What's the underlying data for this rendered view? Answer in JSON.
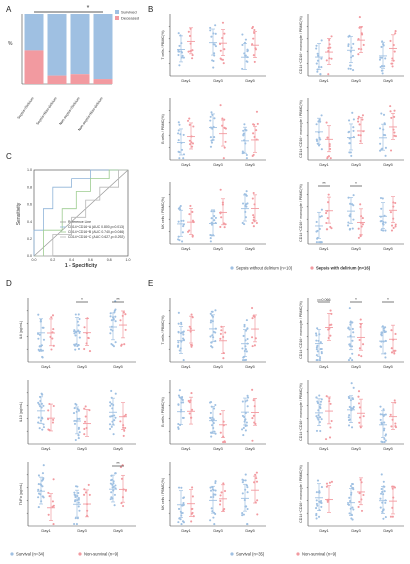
{
  "colors": {
    "blue": "#9fc0e2",
    "red": "#f29aa0",
    "axis": "#444444",
    "roc_ref": "#9a9a9a",
    "roc_a": "#8fb4d8",
    "roc_b": "#9ccc8f",
    "roc_c": "#b7b7b7",
    "sig": "#222222"
  },
  "panel_letters": [
    "A",
    "B",
    "C",
    "D",
    "E"
  ],
  "panelA": {
    "ylabel": "%",
    "legend": [
      "Survived",
      "Deceased"
    ],
    "sig": "*",
    "categories": [
      "Sepsis+Delirium",
      "Sepsis+Non-delirium",
      "Non-sepsis+Delirium",
      "Non-sepsis+Non-delirium"
    ],
    "deceased_pct": [
      48,
      12,
      14,
      7
    ]
  },
  "panelB": {
    "group_labels": [
      "Day1",
      "Day3",
      "Day5"
    ],
    "legend": [
      "Sepsis without delirium (n=10)",
      "Sepsis with delirium (n=16)"
    ],
    "left": [
      "T cells / PBMC(%)",
      "B cells / PBMC(%)",
      "NK cells / PBMC(%)"
    ],
    "right": [
      "CD14⁺CD16⁺ monocyte / PBMC(%)",
      "CD14⁺CD16⁺ monocyte / PBMC(%)",
      "CD14⁺CD16⁺ monocyte / PBMC(%)"
    ],
    "sig_right3": [
      "**",
      "*"
    ]
  },
  "panelC": {
    "xlabel": "1 - Specificity",
    "ylabel": "Sensitivity",
    "ticks": [
      "0.0",
      "0.2",
      "0.4",
      "0.6",
      "0.8",
      "1.0"
    ],
    "legend": [
      "Reference Line",
      "CD14⁺CD16⁺A (AUC 0.800,p=0.013)",
      "CD14⁺CD16⁺B (AUC 0.740,p=0.046)",
      "CD14⁺CD16⁺C (AUC 0.627,p=0.292)"
    ]
  },
  "panelD": {
    "ylabels": [
      "IL6 (pg/mL)",
      "IL10 (pg/mL)",
      "TNFα (pg/mL)"
    ],
    "group_labels": [
      "Day1",
      "Day3",
      "Day5"
    ],
    "legend": [
      "Survival (n=34)",
      "Non-survival (n=9)"
    ],
    "sig1": [
      "*",
      "**"
    ],
    "sig3": [
      "**"
    ]
  },
  "panelE": {
    "left": [
      "T cells / PBMC(%)",
      "B cells / PBMC(%)",
      "NK cells / PBMC(%)"
    ],
    "right": [
      "CD14⁺CD16⁺ monocyte / PBMC(%)",
      "CD14⁺CD16⁺ monocyte / PBMC(%)",
      "CD14⁺CD16⁺ monocyte / PBMC(%)"
    ],
    "group_labels": [
      "Day1",
      "Day3",
      "Day5"
    ],
    "legend": [
      "Survival (n=35)",
      "Non-survival (n=9)"
    ],
    "p_label": "p=0.066",
    "sig_right1": [
      "*",
      "*"
    ]
  }
}
